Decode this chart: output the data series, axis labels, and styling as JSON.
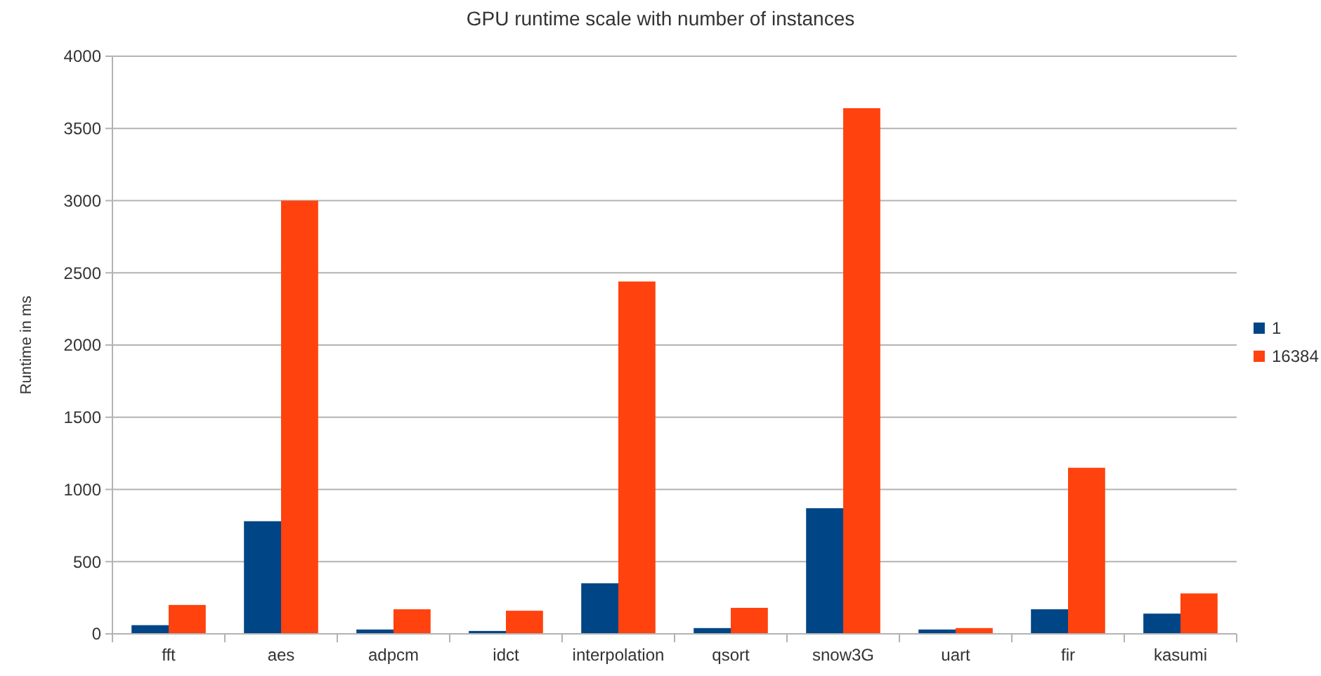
{
  "chart_data": {
    "type": "bar",
    "title": "GPU runtime scale with number of instances",
    "ylabel": "Runtime in ms",
    "categories": [
      "fft",
      "aes",
      "adpcm",
      "idct",
      "interpolation",
      "qsort",
      "snow3G",
      "uart",
      "fir",
      "kasumi"
    ],
    "series": [
      {
        "name": "1",
        "color": "#004586",
        "values": [
          60,
          780,
          30,
          20,
          350,
          40,
          870,
          30,
          170,
          140
        ]
      },
      {
        "name": "16384",
        "color": "#ff420e",
        "values": [
          200,
          3000,
          170,
          160,
          2440,
          180,
          3640,
          40,
          1150,
          280
        ]
      }
    ],
    "ylim": [
      0,
      4000
    ],
    "yticks": [
      0,
      500,
      1000,
      1500,
      2000,
      2500,
      3000,
      3500,
      4000
    ],
    "grid": "y",
    "legend": "right"
  }
}
